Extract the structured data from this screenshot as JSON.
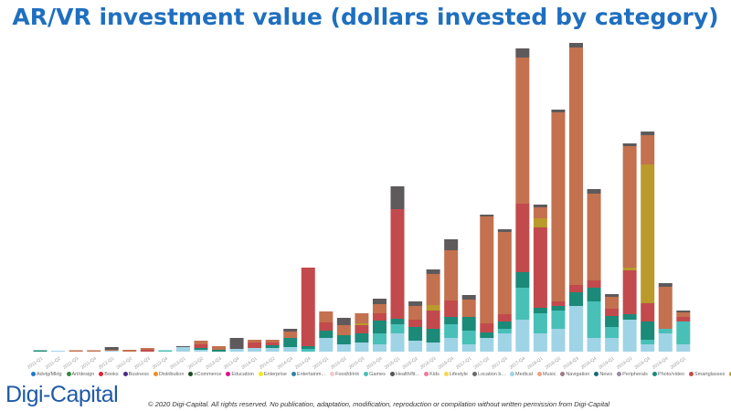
{
  "chart_data": {
    "type": "bar",
    "stacked": true,
    "title": "AR/VR investment value (dollars invested by category)",
    "xlabel": "",
    "ylabel": "",
    "grid": false,
    "legend_placement": "bottom",
    "categories": [
      "2011-Q1",
      "2011-Q2",
      "2011-Q3",
      "2011-Q4",
      "2012-Q1",
      "2012-Q2",
      "2012-Q3",
      "2012-Q4",
      "2013-Q1",
      "2013-Q2",
      "2013-Q3",
      "2013-Q4",
      "2014-Q1",
      "2014-Q2",
      "2014-Q3",
      "2014-Q4",
      "2015-Q1",
      "2015-Q2",
      "2015-Q3",
      "2015-Q4",
      "2016-Q1",
      "2016-Q2",
      "2016-Q3",
      "2016-Q4",
      "2017-Q1",
      "2017-Q2",
      "2017-Q3",
      "2017-Q4",
      "2018-Q1",
      "2018-Q2",
      "2018-Q3",
      "2018-Q4",
      "2019-Q1",
      "2019-Q2",
      "2019-Q3",
      "2019-Q4",
      "2020-Q1"
    ],
    "series": [
      {
        "color": "#9fd3e6",
        "values": [
          0,
          0.01,
          0,
          0,
          0.01,
          0,
          0,
          0,
          0.05,
          0.02,
          0,
          0.03,
          0.04,
          0.04,
          0.05,
          0,
          0.15,
          0.08,
          0.1,
          0.08,
          0.2,
          0.12,
          0.1,
          0.15,
          0.08,
          0.15,
          0.2,
          0.35,
          0.2,
          0.25,
          0.5,
          0.15,
          0.15,
          0.35,
          0.08,
          0.2,
          0.08
        ]
      },
      {
        "name": "Games",
        "color": "#48c0b8",
        "values": [
          0,
          0,
          0,
          0,
          0,
          0,
          0,
          0.015,
          0,
          0,
          0,
          0,
          0,
          0,
          0,
          0.03,
          0,
          0,
          0,
          0.12,
          0.1,
          0,
          0,
          0.15,
          0.15,
          0,
          0.05,
          0.35,
          0.22,
          0.2,
          0,
          0.4,
          0.12,
          0,
          0.05,
          0.05,
          0.25
        ]
      },
      {
        "name": "Photo/video",
        "color": "#1b8a78",
        "values": [
          0.015,
          0,
          0,
          0,
          0,
          0,
          0,
          0,
          0,
          0.02,
          0.02,
          0,
          0,
          0.03,
          0.1,
          0.03,
          0.08,
          0.1,
          0.1,
          0.14,
          0.06,
          0.15,
          0.15,
          0.08,
          0.15,
          0.06,
          0.08,
          0.17,
          0.06,
          0.05,
          0.15,
          0.15,
          0.12,
          0.06,
          0.2,
          0,
          0
        ]
      },
      {
        "name": "Smartglasses",
        "color": "#c24a4c",
        "values": [
          0,
          0,
          0,
          0,
          0,
          0,
          0.02,
          0,
          0,
          0.04,
          0,
          0,
          0.06,
          0.03,
          0,
          0.86,
          0.09,
          0,
          0.09,
          0.08,
          1.2,
          0.08,
          0.2,
          0.18,
          0,
          0.1,
          0.08,
          0.75,
          0.88,
          0.05,
          0.08,
          0.08,
          0.08,
          0.48,
          0.2,
          0,
          0.05
        ]
      },
      {
        "color": "#b99a2a",
        "values": [
          0,
          0,
          0,
          0,
          0,
          0,
          0,
          0,
          0,
          0,
          0,
          0,
          0,
          0,
          0,
          0,
          0,
          0,
          0.02,
          0,
          0,
          0,
          0.06,
          0,
          0,
          0,
          0,
          0,
          0.1,
          0,
          0,
          0,
          0,
          0.03,
          1.52,
          0,
          0
        ]
      },
      {
        "color": "#c3714f",
        "values": [
          0,
          0,
          0.015,
          0.015,
          0.01,
          0.02,
          0.02,
          0,
          0,
          0.04,
          0.04,
          0,
          0.03,
          0.03,
          0.07,
          0,
          0.12,
          0.11,
          0.11,
          0.1,
          0,
          0.15,
          0.34,
          0.55,
          0.19,
          1.17,
          0.9,
          1.6,
          0.12,
          2.07,
          2.6,
          0.95,
          0.13,
          1.33,
          0.32,
          0.46,
          0.05
        ]
      },
      {
        "color": "#5e5a5c",
        "values": [
          0,
          0,
          0,
          0,
          0.03,
          0,
          0,
          0,
          0.01,
          0,
          0,
          0.12,
          0,
          0,
          0.03,
          0,
          0,
          0.08,
          0,
          0.06,
          0.25,
          0.05,
          0.05,
          0.12,
          0.05,
          0.02,
          0.03,
          0.1,
          0.03,
          0.03,
          0.05,
          0.05,
          0.03,
          0.03,
          0.04,
          0.04,
          0.02
        ]
      }
    ]
  },
  "legend": [
    {
      "label": "Advtg/Mktg",
      "color": "#1f77d0"
    },
    {
      "label": "Art/design",
      "color": "#2c8a3a"
    },
    {
      "label": "Books",
      "color": "#e0202e"
    },
    {
      "label": "Business",
      "color": "#4b2a8a"
    },
    {
      "label": "Distribution",
      "color": "#f28c1e"
    },
    {
      "label": "eCommerce",
      "color": "#1a4a22"
    },
    {
      "label": "Education",
      "color": "#e0108a"
    },
    {
      "label": "Enterprise",
      "color": "#f4e81a"
    },
    {
      "label": "Entertainm...",
      "color": "#2a86a8"
    },
    {
      "label": "Food/drink",
      "color": "#f2c8d0"
    },
    {
      "label": "Games",
      "color": "#48c0b8"
    },
    {
      "label": "Health/fit...",
      "color": "#555555"
    },
    {
      "label": "Kids",
      "color": "#f07a9a"
    },
    {
      "label": "Lifestyle",
      "color": "#f4d84a"
    },
    {
      "label": "Location b...",
      "color": "#6a6a6a"
    },
    {
      "label": "Medical",
      "color": "#9fd3e6"
    },
    {
      "label": "Music",
      "color": "#f0a080"
    },
    {
      "label": "Navigation",
      "color": "#a07888"
    },
    {
      "label": "News",
      "color": "#1a6a78"
    },
    {
      "label": "Peripherals",
      "color": "#9a8aa0"
    },
    {
      "label": "Photo/video",
      "color": "#1b8a78"
    },
    {
      "label": "Smartglasses",
      "color": "#c24a4c"
    },
    {
      "label": "Social",
      "color": "#b99a2a"
    }
  ],
  "logo": "Digi-Capital",
  "footer": "© 2020 Digi-Capital. All rights reserved. No publication, adaptation, modification, reproduction or compilation without written permission from Digi-Capital"
}
